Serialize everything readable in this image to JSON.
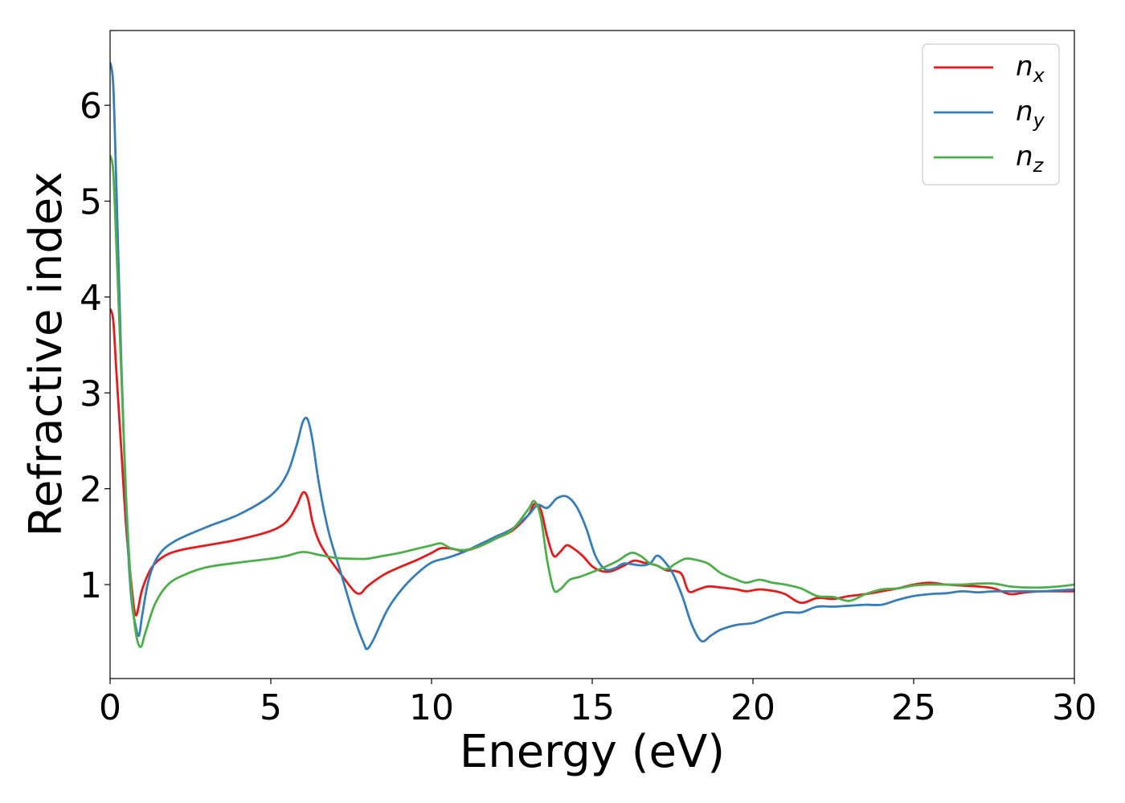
{
  "chart_data": {
    "type": "line",
    "xlabel": "Energy (eV)",
    "ylabel": "Refractive index",
    "xlim": [
      0,
      30
    ],
    "ylim": [
      0.02,
      6.78
    ],
    "xticks": [
      "0",
      "5",
      "10",
      "15",
      "20",
      "25",
      "30"
    ],
    "yticks": [
      "1",
      "2",
      "3",
      "4",
      "5",
      "6"
    ],
    "grid": false,
    "legend_position": "top-right",
    "series": [
      {
        "name": "n_x",
        "legend_main": "n",
        "legend_sub": "x",
        "color": "#e41a1c",
        "x": [
          0,
          0.1,
          0.2,
          0.35,
          0.5,
          0.65,
          0.8,
          1.0,
          1.3,
          1.7,
          2.2,
          3,
          4,
          5,
          5.5,
          5.8,
          6.0,
          6.15,
          6.3,
          6.5,
          6.8,
          7.2,
          7.6,
          7.8,
          8.0,
          8.5,
          9,
          9.5,
          10,
          10.3,
          10.7,
          11,
          11.5,
          12,
          12.5,
          13,
          13.2,
          13.4,
          13.6,
          13.8,
          14.0,
          14.2,
          14.4,
          14.7,
          15,
          15.3,
          15.6,
          16,
          16.3,
          16.6,
          17,
          17.3,
          17.6,
          17.8,
          18,
          18.3,
          18.6,
          19,
          19.5,
          19.8,
          20.2,
          20.7,
          21,
          21.5,
          22,
          22.5,
          23,
          23.5,
          24,
          24.5,
          25,
          25.5,
          26,
          26.5,
          27,
          27.5,
          28,
          28.5,
          29,
          29.5,
          30
        ],
        "values": [
          3.88,
          3.75,
          3.2,
          2.4,
          1.6,
          1.05,
          0.68,
          0.95,
          1.18,
          1.3,
          1.36,
          1.41,
          1.47,
          1.56,
          1.66,
          1.82,
          1.96,
          1.9,
          1.65,
          1.45,
          1.28,
          1.1,
          0.93,
          0.91,
          0.98,
          1.1,
          1.18,
          1.25,
          1.33,
          1.38,
          1.37,
          1.35,
          1.4,
          1.48,
          1.56,
          1.72,
          1.84,
          1.78,
          1.5,
          1.3,
          1.34,
          1.41,
          1.38,
          1.3,
          1.19,
          1.14,
          1.14,
          1.2,
          1.25,
          1.23,
          1.2,
          1.15,
          1.14,
          1.1,
          0.93,
          0.95,
          0.98,
          0.97,
          0.95,
          0.93,
          0.95,
          0.93,
          0.9,
          0.81,
          0.86,
          0.85,
          0.88,
          0.9,
          0.93,
          0.96,
          1.0,
          1.02,
          1.0,
          0.99,
          0.98,
          0.96,
          0.9,
          0.92,
          0.93,
          0.93,
          0.93
        ]
      },
      {
        "name": "n_y",
        "legend_main": "n",
        "legend_sub": "y",
        "color": "#377eb8",
        "x": [
          0,
          0.1,
          0.2,
          0.35,
          0.5,
          0.65,
          0.8,
          0.9,
          1.0,
          1.2,
          1.5,
          2,
          3,
          4,
          5,
          5.5,
          5.8,
          6.0,
          6.15,
          6.3,
          6.5,
          6.8,
          7.2,
          7.6,
          7.9,
          8.0,
          8.2,
          8.6,
          9,
          9.5,
          10,
          10.5,
          11,
          11.5,
          12,
          12.5,
          13,
          13.3,
          13.6,
          13.9,
          14.2,
          14.5,
          14.8,
          15.1,
          15.4,
          15.7,
          16,
          16.5,
          16.8,
          17.0,
          17.2,
          17.5,
          17.8,
          18.1,
          18.4,
          18.7,
          19,
          19.5,
          20,
          20.5,
          21,
          21.5,
          22,
          22.5,
          23,
          23.5,
          24,
          24.5,
          25,
          25.5,
          26,
          26.5,
          27,
          27.5,
          28,
          28.5,
          29,
          29.5,
          30
        ],
        "values": [
          6.45,
          6.2,
          5.1,
          3.3,
          1.8,
          0.9,
          0.56,
          0.47,
          0.68,
          1.05,
          1.3,
          1.45,
          1.6,
          1.73,
          1.93,
          2.15,
          2.45,
          2.7,
          2.72,
          2.5,
          2.05,
          1.55,
          1.1,
          0.65,
          0.38,
          0.33,
          0.43,
          0.72,
          0.92,
          1.1,
          1.23,
          1.28,
          1.34,
          1.42,
          1.5,
          1.58,
          1.72,
          1.83,
          1.8,
          1.9,
          1.92,
          1.82,
          1.6,
          1.3,
          1.16,
          1.17,
          1.22,
          1.2,
          1.22,
          1.3,
          1.26,
          1.12,
          0.88,
          0.58,
          0.41,
          0.47,
          0.53,
          0.58,
          0.6,
          0.66,
          0.71,
          0.71,
          0.77,
          0.77,
          0.78,
          0.79,
          0.79,
          0.84,
          0.88,
          0.9,
          0.91,
          0.93,
          0.92,
          0.93,
          0.93,
          0.93,
          0.93,
          0.94,
          0.95
        ]
      },
      {
        "name": "n_z",
        "legend_main": "n",
        "legend_sub": "z",
        "color": "#4daf4a",
        "x": [
          0,
          0.1,
          0.2,
          0.35,
          0.5,
          0.65,
          0.8,
          0.95,
          1.1,
          1.4,
          1.8,
          2.3,
          3,
          4,
          5,
          5.5,
          6.0,
          6.5,
          7,
          7.5,
          8,
          8.5,
          9,
          9.5,
          10,
          10.3,
          10.6,
          11,
          11.5,
          12,
          12.5,
          13,
          13.2,
          13.4,
          13.6,
          13.8,
          14.0,
          14.3,
          14.6,
          15,
          15.5,
          15.8,
          16.2,
          16.5,
          16.8,
          17,
          17.3,
          17.6,
          17.9,
          18.2,
          18.6,
          19,
          19.5,
          19.8,
          20.2,
          20.6,
          21,
          21.5,
          22,
          22.5,
          23,
          23.5,
          24,
          24.5,
          25,
          25.5,
          26,
          26.5,
          27,
          27.5,
          28,
          28.5,
          29,
          29.5,
          30
        ],
        "values": [
          5.48,
          5.3,
          4.5,
          3.2,
          1.9,
          1.0,
          0.5,
          0.35,
          0.5,
          0.8,
          1.0,
          1.1,
          1.18,
          1.23,
          1.27,
          1.3,
          1.34,
          1.31,
          1.28,
          1.27,
          1.27,
          1.3,
          1.33,
          1.37,
          1.41,
          1.43,
          1.38,
          1.36,
          1.4,
          1.48,
          1.57,
          1.78,
          1.87,
          1.7,
          1.25,
          0.95,
          0.95,
          1.05,
          1.08,
          1.13,
          1.2,
          1.25,
          1.33,
          1.3,
          1.22,
          1.2,
          1.16,
          1.22,
          1.27,
          1.26,
          1.22,
          1.12,
          1.05,
          1.02,
          1.05,
          1.02,
          1.0,
          0.96,
          0.88,
          0.87,
          0.83,
          0.9,
          0.95,
          0.96,
          0.99,
          1.0,
          1.0,
          1.0,
          1.01,
          1.01,
          0.98,
          0.97,
          0.97,
          0.98,
          1.0
        ]
      }
    ]
  }
}
